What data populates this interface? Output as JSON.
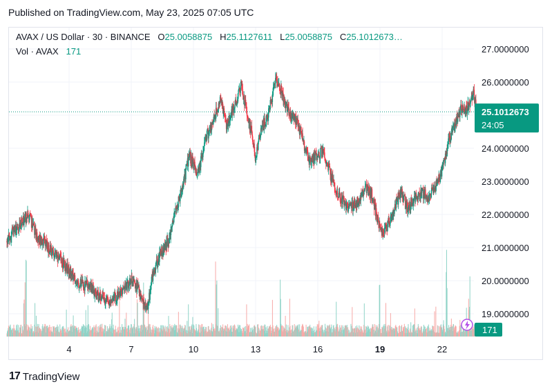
{
  "published": "Published on TradingView.com, May 23, 2025 07:05 UTC",
  "legend": {
    "symbol": "AVAX / US Dollar · 30 · BINANCE",
    "o_label": "O",
    "o_value": "25.0058875",
    "h_label": "H",
    "h_value": "25.1127611",
    "l_label": "L",
    "l_value": "25.0058875",
    "c_label": "C",
    "c_value": "25.1012673…",
    "vol_label": "Vol · AVAX",
    "vol_value": "171"
  },
  "price_badge": {
    "price": "25.1012673",
    "countdown": "24:05"
  },
  "volume_badge": "171",
  "footer": {
    "brand": "TradingView",
    "logo_glyph": "17"
  },
  "colors": {
    "up": "#089981",
    "down": "#f23645",
    "badge": "#089981",
    "grid": "#f0f3fa"
  },
  "chart_data": {
    "type": "candlestick",
    "y_ticks": [
      "27.0000000",
      "26.0000000",
      "25.0000000",
      "24.0000000",
      "23.0000000",
      "22.0000000",
      "21.0000000",
      "20.0000000",
      "19.0000000"
    ],
    "y_tick_values": [
      27,
      26,
      25,
      24,
      23,
      22,
      21,
      20,
      19
    ],
    "ylim": [
      18.35,
      27.45
    ],
    "x_ticks": [
      "4",
      "7",
      "10",
      "13",
      "16",
      "19",
      "22"
    ],
    "x_tick_days": [
      4,
      7,
      10,
      13,
      16,
      19,
      22
    ],
    "x_bold_ticks": [
      "19"
    ],
    "xlim_days": [
      1.0,
      23.8
    ],
    "last_price": 25.1012673,
    "path_days": [
      1.0,
      1.3,
      1.6,
      2.0,
      2.5,
      3.0,
      3.5,
      4.0,
      4.5,
      5.0,
      5.5,
      6.0,
      6.5,
      7.0,
      7.3,
      7.6,
      7.8,
      8.0,
      8.4,
      8.8,
      9.2,
      9.5,
      9.8,
      10.2,
      10.6,
      11.0,
      11.3,
      11.6,
      12.0,
      12.3,
      12.6,
      12.8,
      13.0,
      13.3,
      13.6,
      14.0,
      14.3,
      14.6,
      15.0,
      15.3,
      15.6,
      16.0,
      16.3,
      16.6,
      17.0,
      17.5,
      18.0,
      18.3,
      18.6,
      18.9,
      19.1,
      19.3,
      19.6,
      20.0,
      20.3,
      20.6,
      21.0,
      21.3,
      21.6,
      22.0,
      22.3,
      22.6,
      22.9,
      23.1,
      23.3,
      23.5,
      23.7
    ],
    "path_prices": [
      21.2,
      21.5,
      21.6,
      22.0,
      21.3,
      21.0,
      20.7,
      20.3,
      19.9,
      19.8,
      19.5,
      19.4,
      19.6,
      20.0,
      19.8,
      19.3,
      19.2,
      20.1,
      20.8,
      21.2,
      22.2,
      22.9,
      23.8,
      23.2,
      24.3,
      24.9,
      25.5,
      24.7,
      25.3,
      25.9,
      25.0,
      24.5,
      23.7,
      24.6,
      25.0,
      26.1,
      25.6,
      25.1,
      24.8,
      24.2,
      23.6,
      23.8,
      23.9,
      23.2,
      22.6,
      22.2,
      22.4,
      22.8,
      22.6,
      21.8,
      21.5,
      21.6,
      22.0,
      22.7,
      22.2,
      22.4,
      22.7,
      22.5,
      22.8,
      23.3,
      24.2,
      24.7,
      25.2,
      25.1,
      25.3,
      25.7,
      25.1
    ],
    "volume_axis_top": 19.0,
    "volumes_note": "",
    "volume_peaks_days": [
      1.9,
      7.6,
      11.1,
      14.2,
      19.0,
      22.2,
      23.3
    ],
    "volume_peaks": [
      1.0,
      0.85,
      1.0,
      0.75,
      0.7,
      1.0,
      0.55
    ],
    "last_volume": 171
  }
}
